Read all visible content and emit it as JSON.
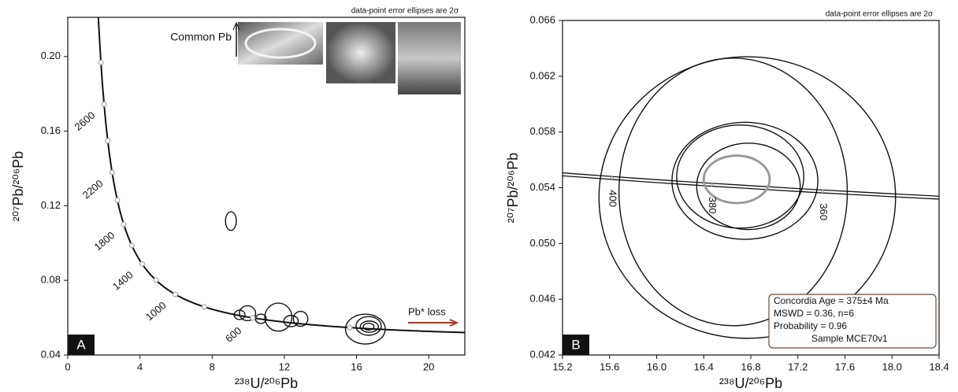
{
  "chart_data": [
    {
      "type": "concordia",
      "panel": "A",
      "annotation": "data-point error ellipses are 2σ",
      "common_pb": "Common Pb",
      "pb_loss": "Pb* loss",
      "x_label": "²³⁸U/²⁰⁶Pb",
      "y_label": "²⁰⁷Pb/²⁰⁶Pb",
      "xlim": [
        0,
        22
      ],
      "ylim": [
        0.04,
        0.221
      ],
      "xticks": [
        0,
        4,
        8,
        12,
        16,
        20
      ],
      "yticks": [
        0.04,
        0.08,
        0.12,
        0.16,
        {
          "value": 0.2,
          "label": "0.20"
        }
      ],
      "concordia_labels": [
        2600,
        2200,
        1800,
        1400,
        1000,
        600
      ],
      "concordia_markers": [
        400,
        600,
        800,
        1000,
        1200,
        1400,
        1600,
        1800,
        2000,
        2200,
        2400,
        2600,
        2800
      ],
      "ellipses": [
        {
          "color": "#111",
          "x": [
            9.04,
            9.52,
            9.96,
            10.7,
            11.67,
            12.37,
            12.9,
            16.49,
            16.67,
            16.71,
            16.67
          ],
          "y": [
            0.1118,
            0.0615,
            0.0624,
            0.0594,
            0.0603,
            0.0582,
            0.0594,
            0.0539,
            0.0556,
            0.0552,
            0.0552
          ],
          "x_err": [
            0.3,
            0.3,
            0.45,
            0.3,
            0.75,
            0.4,
            0.4,
            1.1,
            0.7,
            0.5,
            0.3
          ],
          "y_err": [
            0.005,
            0.0025,
            0.004,
            0.0025,
            0.0075,
            0.003,
            0.004,
            0.008,
            0.005,
            0.003,
            0.0018
          ]
        }
      ]
    },
    {
      "type": "concordia",
      "panel": "B",
      "annotation": "data-point error ellipses are 2σ",
      "x_label": "²³⁸U/²⁰⁶Pb",
      "y_label": "²⁰⁷Pb/²⁰⁶Pb",
      "xlim": [
        15.2,
        18.4
      ],
      "ylim": [
        0.042,
        0.066
      ],
      "xticks": [
        15.2,
        15.6,
        {
          "value": 16,
          "label": "16.0"
        },
        16.4,
        16.8,
        17.2,
        17.6,
        {
          "value": 18,
          "label": "18.0"
        },
        18.4
      ],
      "yticks": [
        0.042,
        0.046,
        {
          "value": 0.05,
          "label": "0.050"
        },
        0.054,
        0.058,
        0.062,
        0.066
      ],
      "concordia_labels": [
        400,
        380,
        360
      ],
      "concordia_markers": [
        400,
        380,
        360
      ],
      "ellipses": [
        {
          "color": "#111",
          "x": [
            16.77,
            16.65,
            16.75,
            16.71,
            16.78
          ],
          "y": [
            0.0533,
            0.0537,
            0.0545,
            0.0548,
            0.0541
          ],
          "x_err": [
            1.26,
            0.97,
            0.62,
            0.54,
            0.44
          ],
          "y_err": [
            0.0101,
            0.0096,
            0.0042,
            0.0037,
            0.0031
          ]
        },
        {
          "color": "#9a9a9a",
          "x": [
            16.68
          ],
          "y": [
            0.0546
          ],
          "x_err": [
            0.28
          ],
          "y_err": [
            0.0017
          ]
        }
      ],
      "legend_lines": [
        "Concordia Age = 375±4 Ma",
        "MSWD = 0.36, n=6",
        "Probability = 0.96",
        "Sample MCE70v1"
      ]
    }
  ]
}
